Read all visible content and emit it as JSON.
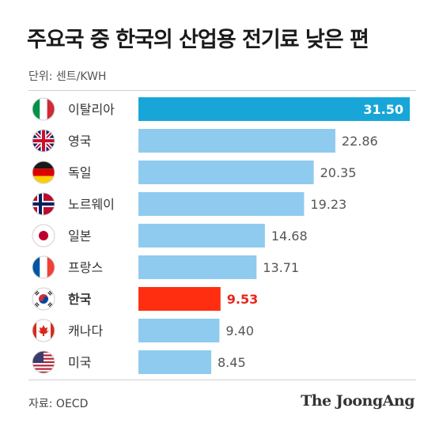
{
  "title": "주요국 중 한국의 산업용 전기료 낮은 편",
  "unit_label": "단위: 센트/KWH",
  "source": "자료: OECD",
  "brand": "The JoongAng",
  "colors": {
    "top_bar": "#18a6d8",
    "bar": "#8fcbee",
    "highlight_bar": "#ff2e10",
    "highlight_text": "#e8251a",
    "value_text": "#555555",
    "label_text": "#333333"
  },
  "chart_data": {
    "type": "bar",
    "orientation": "horizontal",
    "xlim": [
      0,
      31.5
    ],
    "categories": [
      "이탈리아",
      "영국",
      "독일",
      "노르웨이",
      "일본",
      "프랑스",
      "한국",
      "캐나다",
      "미국"
    ],
    "values": [
      31.5,
      22.86,
      20.35,
      19.23,
      14.68,
      13.71,
      9.53,
      9.4,
      8.45
    ],
    "value_labels": [
      "31.50",
      "22.86",
      "20.35",
      "19.23",
      "14.68",
      "13.71",
      "9.53",
      "9.40",
      "8.45"
    ],
    "flags": [
      "italy-flag-icon",
      "uk-flag-icon",
      "germany-flag-icon",
      "norway-flag-icon",
      "japan-flag-icon",
      "france-flag-icon",
      "korea-flag-icon",
      "canada-flag-icon",
      "usa-flag-icon"
    ],
    "highlight": "한국",
    "grid": false,
    "legend": "none"
  }
}
